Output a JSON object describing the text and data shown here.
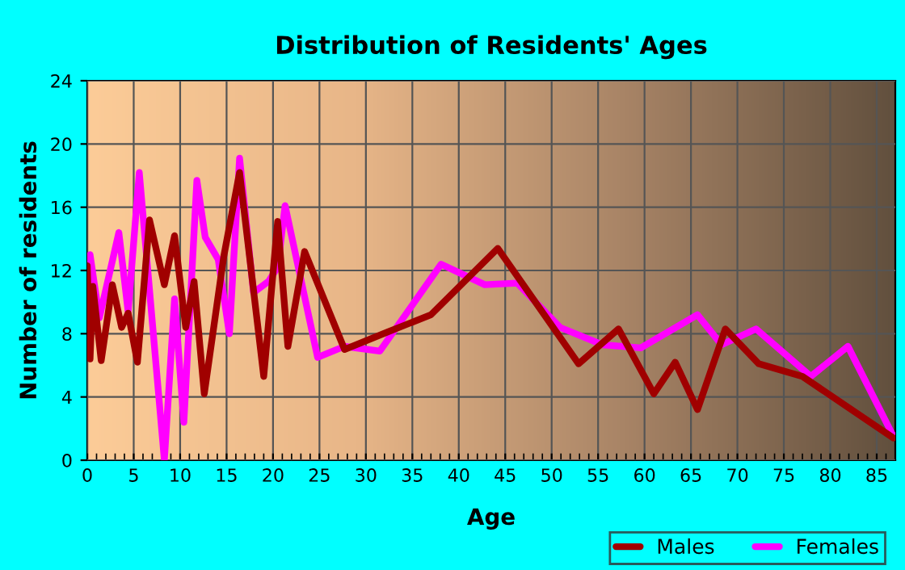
{
  "chart_data": {
    "type": "line",
    "title": "Distribution of Residents' Ages",
    "xlabel": "Age",
    "ylabel": "Number of residents",
    "xlim": [
      0,
      87
    ],
    "xticks": [
      0,
      5,
      10,
      15,
      20,
      25,
      30,
      35,
      40,
      45,
      50,
      55,
      60,
      65,
      70,
      75,
      80,
      85
    ],
    "ylim": [
      0,
      24
    ],
    "yticks": [
      0,
      4,
      8,
      12,
      16,
      20,
      24
    ],
    "grid": true,
    "legend": "bottom right",
    "line_style": "solid",
    "marker": "none",
    "series": [
      {
        "name": "Males",
        "color": "#a00000",
        "x": [
          0,
          0.3,
          0.6,
          1.5,
          2.7,
          3.7,
          4.4,
          5.4,
          6.7,
          8.3,
          9.4,
          10.6,
          11.5,
          12.6,
          14.7,
          16.4,
          19,
          20.5,
          21.6,
          23.4,
          27.7,
          32.3,
          37,
          44.2,
          52.9,
          57.2,
          61,
          63.3,
          65.7,
          68.7,
          72.3,
          77,
          86.8
        ],
        "values": [
          12.3,
          6.4,
          11,
          6.3,
          11.1,
          8.4,
          9.3,
          6.2,
          15.2,
          11.1,
          14.2,
          8.4,
          11.3,
          4.2,
          12.9,
          18.2,
          5.3,
          15.1,
          7.2,
          13.2,
          7,
          8.1,
          9.2,
          13.4,
          6.1,
          8.3,
          4.2,
          6.2,
          3.2,
          8.3,
          6.1,
          5.3,
          1.4
        ]
      },
      {
        "name": "Females",
        "color": "#ff00ff",
        "x": [
          0,
          0.3,
          1.3,
          3.4,
          4.4,
          5.6,
          8.3,
          9.4,
          10.4,
          11.8,
          12.7,
          14.1,
          15.3,
          16.4,
          17.9,
          19.5,
          20.5,
          21.3,
          24.8,
          27.7,
          31.5,
          38.1,
          42.8,
          46.3,
          50.9,
          55.5,
          59.6,
          65.7,
          68.3,
          72,
          77.9,
          81.9,
          86.8
        ],
        "values": [
          12,
          13,
          9,
          14.4,
          9.4,
          18.2,
          0,
          10.2,
          2.4,
          17.7,
          14.1,
          12.7,
          8,
          19.1,
          10.6,
          11.3,
          12.2,
          16.1,
          6.5,
          7.2,
          6.9,
          12.4,
          11.1,
          11.2,
          8.4,
          7.3,
          7.1,
          9.2,
          7.3,
          8.3,
          5.3,
          7.2,
          1.5
        ]
      }
    ]
  }
}
